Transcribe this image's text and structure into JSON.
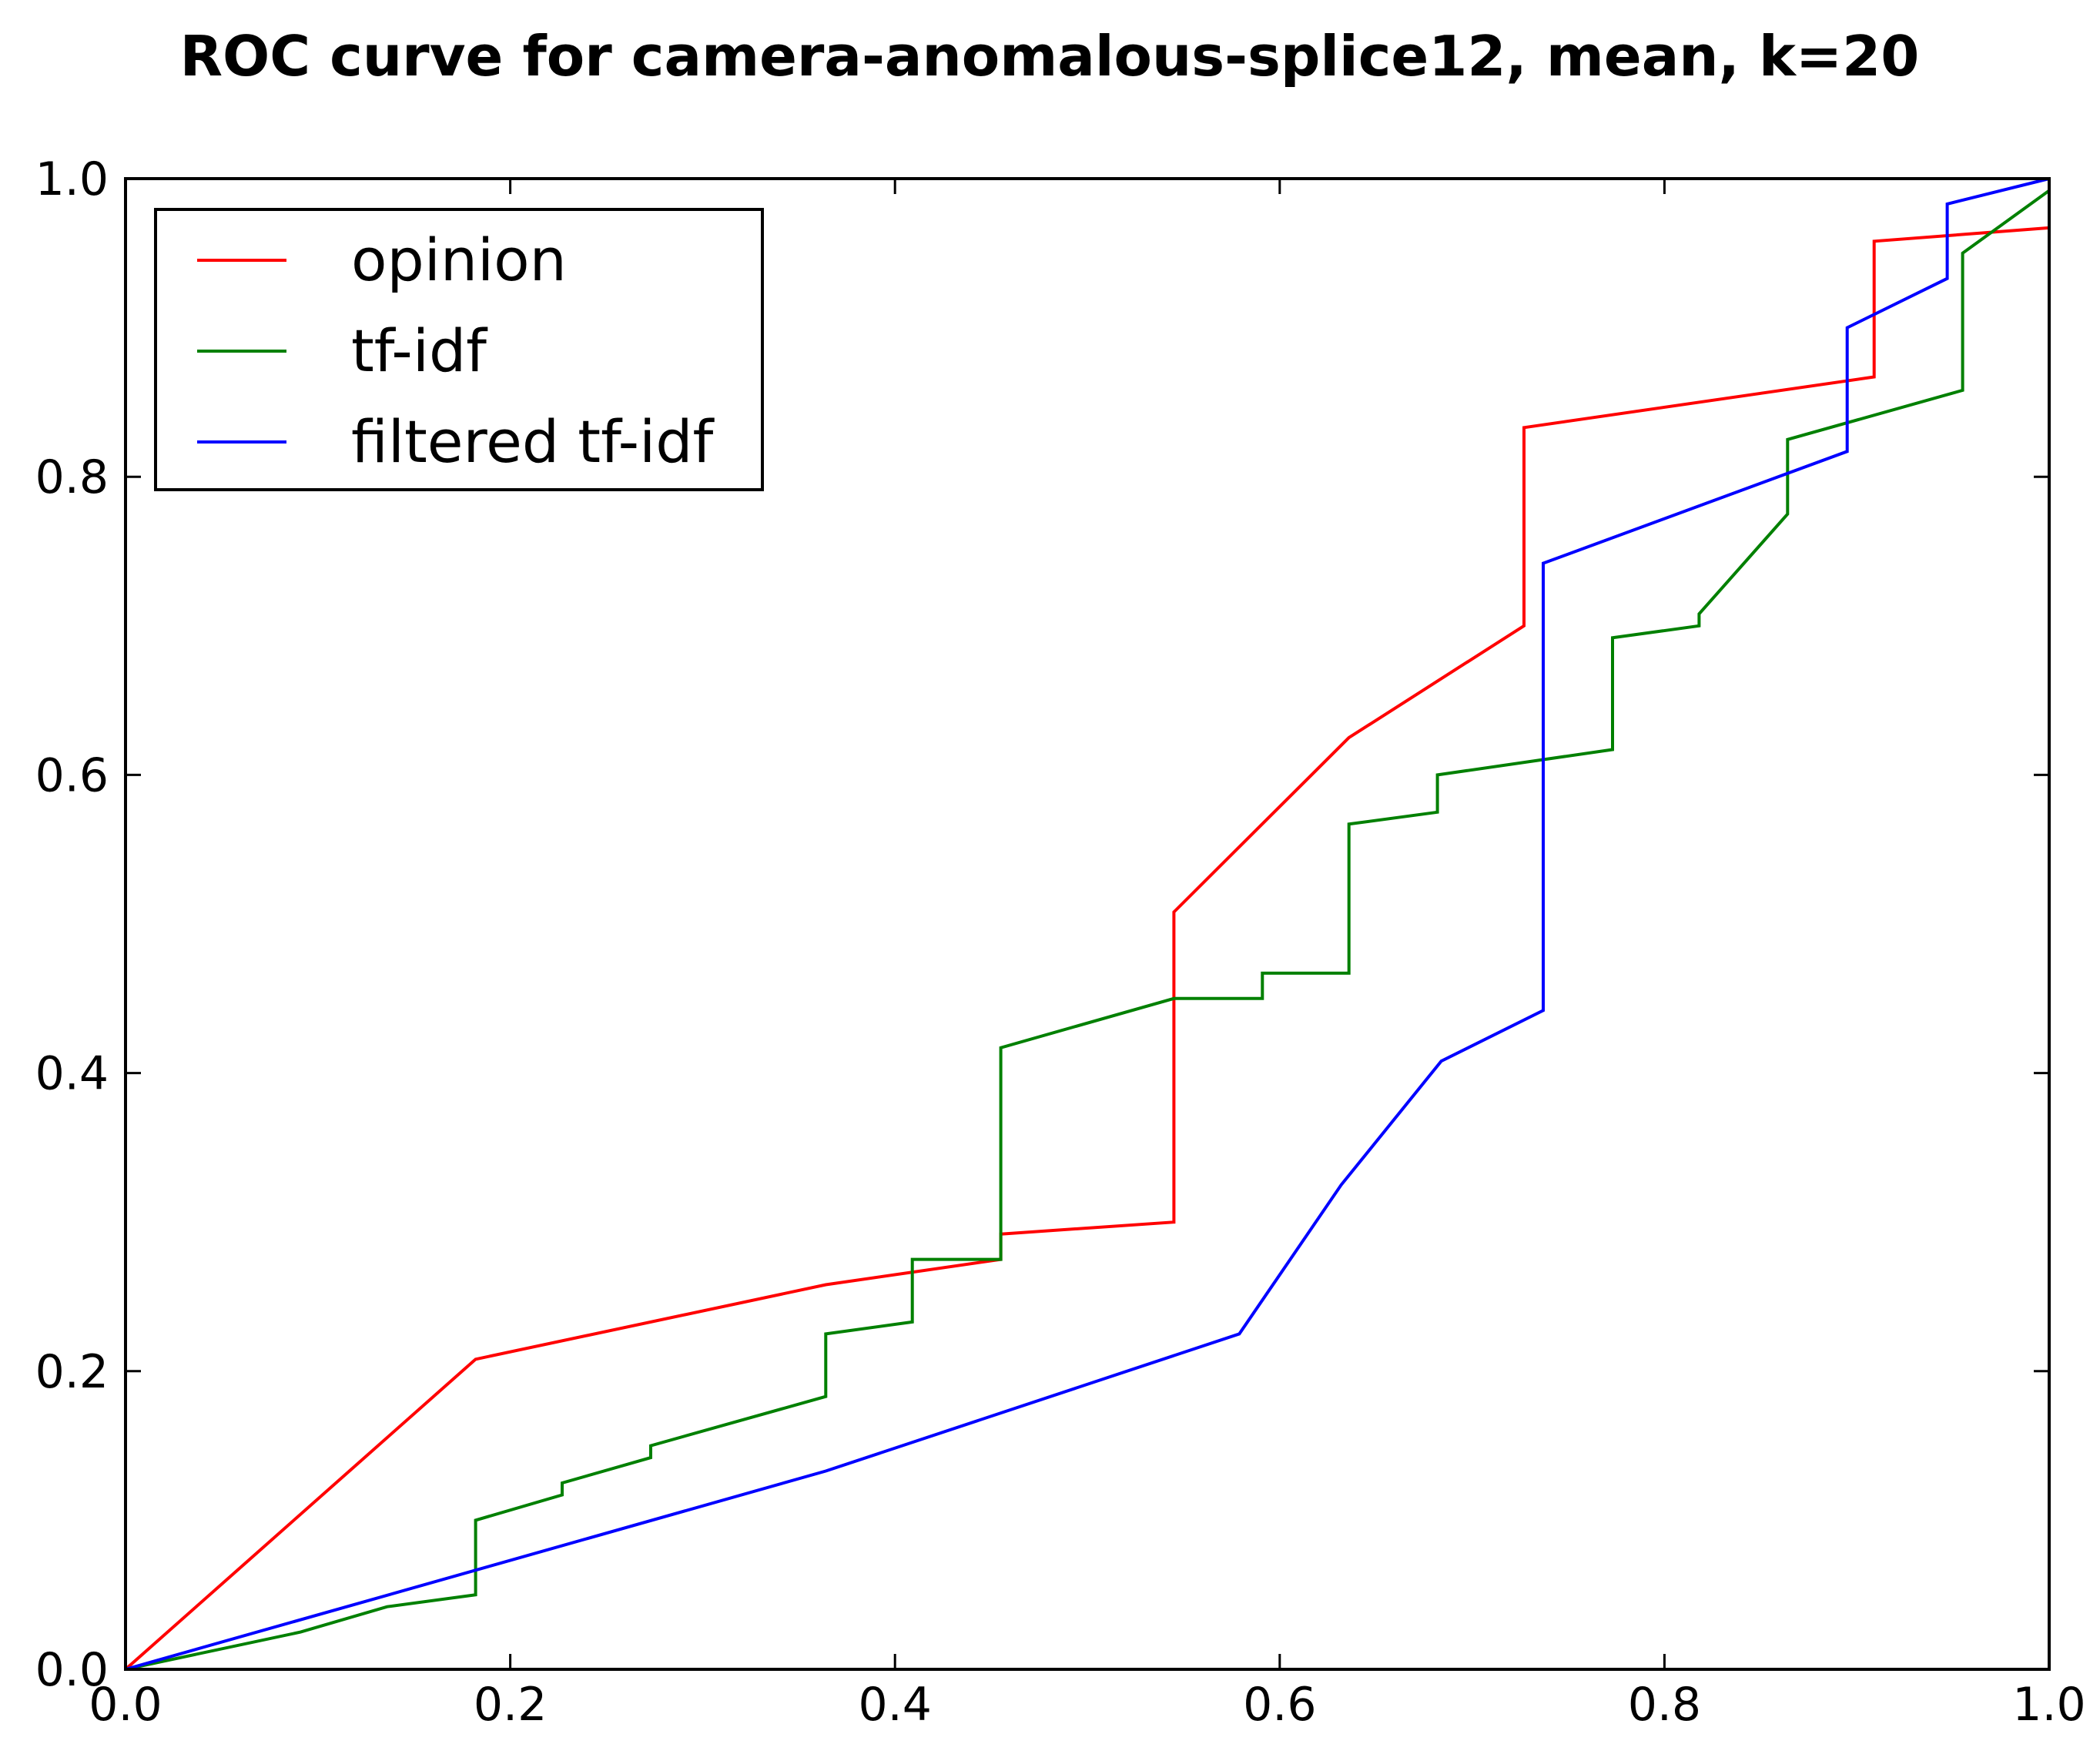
{
  "chart_data": {
    "type": "line",
    "title": "ROC curve for camera-anomalous-splice12, mean, k=20",
    "xlabel": "",
    "ylabel": "",
    "xlim": [
      0.0,
      1.0
    ],
    "ylim": [
      0.0,
      1.0
    ],
    "xticks": [
      "0.0",
      "0.2",
      "0.4",
      "0.6",
      "0.8",
      "1.0"
    ],
    "yticks": [
      "0.0",
      "0.2",
      "0.4",
      "0.6",
      "0.8",
      "1.0"
    ],
    "grid": false,
    "legend_position": "upper-left",
    "series": [
      {
        "name": "opinion",
        "color": "#ff0000",
        "points": [
          [
            0.0,
            0.0
          ],
          [
            0.182,
            0.208
          ],
          [
            0.364,
            0.258
          ],
          [
            0.455,
            0.275
          ],
          [
            0.455,
            0.292
          ],
          [
            0.545,
            0.3
          ],
          [
            0.545,
            0.508
          ],
          [
            0.636,
            0.625
          ],
          [
            0.727,
            0.7
          ],
          [
            0.727,
            0.833
          ],
          [
            0.909,
            0.867
          ],
          [
            0.909,
            0.958
          ],
          [
            1.0,
            0.967
          ]
        ]
      },
      {
        "name": "tf-idf",
        "color": "#008000",
        "points": [
          [
            0.0,
            0.0
          ],
          [
            0.091,
            0.025
          ],
          [
            0.136,
            0.042
          ],
          [
            0.182,
            0.05
          ],
          [
            0.182,
            0.1
          ],
          [
            0.227,
            0.117
          ],
          [
            0.227,
            0.125
          ],
          [
            0.273,
            0.142
          ],
          [
            0.273,
            0.15
          ],
          [
            0.364,
            0.183
          ],
          [
            0.364,
            0.225
          ],
          [
            0.409,
            0.233
          ],
          [
            0.409,
            0.275
          ],
          [
            0.455,
            0.275
          ],
          [
            0.455,
            0.417
          ],
          [
            0.545,
            0.45
          ],
          [
            0.591,
            0.45
          ],
          [
            0.591,
            0.467
          ],
          [
            0.636,
            0.467
          ],
          [
            0.636,
            0.567
          ],
          [
            0.682,
            0.575
          ],
          [
            0.682,
            0.6
          ],
          [
            0.773,
            0.617
          ],
          [
            0.773,
            0.692
          ],
          [
            0.818,
            0.7
          ],
          [
            0.818,
            0.708
          ],
          [
            0.864,
            0.775
          ],
          [
            0.864,
            0.825
          ],
          [
            0.955,
            0.858
          ],
          [
            0.955,
            0.95
          ],
          [
            1.0,
            0.992
          ]
        ]
      },
      {
        "name": "filtered tf-idf",
        "color": "#0000ff",
        "points": [
          [
            0.0,
            0.0
          ],
          [
            0.364,
            0.133
          ],
          [
            0.579,
            0.225
          ],
          [
            0.632,
            0.325
          ],
          [
            0.684,
            0.408
          ],
          [
            0.737,
            0.442
          ],
          [
            0.737,
            0.742
          ],
          [
            0.895,
            0.817
          ],
          [
            0.895,
            0.9
          ],
          [
            0.947,
            0.933
          ],
          [
            0.947,
            0.983
          ],
          [
            1.0,
            1.0
          ]
        ]
      }
    ]
  }
}
